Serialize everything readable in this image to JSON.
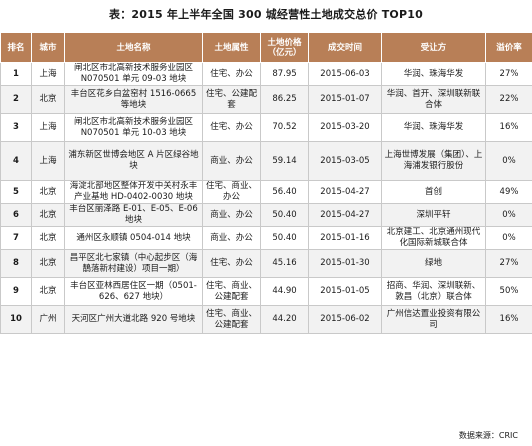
{
  "title": "表：2015 年上半年全国 300 城经营性土地成交总价 TOP10",
  "headers": {
    "rank": "排名",
    "city": "城市",
    "land_name": "土地名称",
    "usage": "土地属性",
    "price": "土地价格（亿元）",
    "date": "成交时间",
    "buyer": "受让方",
    "premium": "溢价率"
  },
  "rows": [
    {
      "rank": "1",
      "city": "上海",
      "land_name": "闸北区市北高新技术服务业园区 N070501 单元 09-03 地块",
      "usage": "住宅、办公",
      "price": "87.95",
      "date": "2015-06-03",
      "buyer": "华润、珠海华发",
      "premium": "27%"
    },
    {
      "rank": "2",
      "city": "北京",
      "land_name": "丰台区花乡白盆窑村 1516-0665 等地块",
      "usage": "住宅、公建配套",
      "price": "86.25",
      "date": "2015-01-07",
      "buyer": "华润、首开、深圳联新联合体",
      "premium": "22%"
    },
    {
      "rank": "3",
      "city": "上海",
      "land_name": "闸北区市北高新技术服务业园区 N070501 单元 10-03 地块",
      "usage": "住宅、办公",
      "price": "70.52",
      "date": "2015-03-20",
      "buyer": "华润、珠海华发",
      "premium": "16%"
    },
    {
      "rank": "4",
      "city": "上海",
      "land_name": "浦东新区世博会地区 A 片区绿谷地块",
      "usage": "商业、办公",
      "price": "59.14",
      "date": "2015-03-05",
      "buyer": "上海世博发展（集团）、上海浦发银行股份",
      "premium": "0%"
    },
    {
      "rank": "5",
      "city": "北京",
      "land_name": "海淀北部地区整体开发中关村永丰产业基地 HD-0402-0030 地块",
      "usage": "住宅、商业、办公",
      "price": "56.40",
      "date": "2015-04-27",
      "buyer": "首创",
      "premium": "49%"
    },
    {
      "rank": "6",
      "city": "北京",
      "land_name": "丰台区丽泽路 E-01、E-05、E-06 地块",
      "usage": "商业、办公",
      "price": "50.40",
      "date": "2015-04-27",
      "buyer": "深圳平轩",
      "premium": "0%"
    },
    {
      "rank": "7",
      "city": "北京",
      "land_name": "通州区永顺镇 0504-014 地块",
      "usage": "商业、办公",
      "price": "50.40",
      "date": "2015-01-16",
      "buyer": "北京建工、北京通州现代化国际新城联合体",
      "premium": "0%"
    },
    {
      "rank": "8",
      "city": "北京",
      "land_name": "昌平区北七家镇（中心起步区（海鶄落新村建设）项目一期）",
      "usage": "住宅、办公",
      "price": "45.16",
      "date": "2015-01-30",
      "buyer": "绿地",
      "premium": "27%"
    },
    {
      "rank": "9",
      "city": "北京",
      "land_name": "丰台区亚林西居住区一期（0501-626、627 地块）",
      "usage": "住宅、商业、公建配套",
      "price": "44.90",
      "date": "2015-01-05",
      "buyer": "招商、华润、深圳联新、敦昌（北京）联合体",
      "premium": "50%"
    },
    {
      "rank": "10",
      "city": "广州",
      "land_name": "天河区广州大道北路 920 号地块",
      "usage": "住宅、商业、公建配套",
      "price": "44.20",
      "date": "2015-06-02",
      "buyer": "广州信达置业投资有限公司",
      "premium": "16%"
    }
  ],
  "source": "数据来源：CRIC",
  "colors": {
    "header_bg": "#b87f57",
    "header_text": "#ffffff",
    "stripe": "#f2f2f2"
  }
}
